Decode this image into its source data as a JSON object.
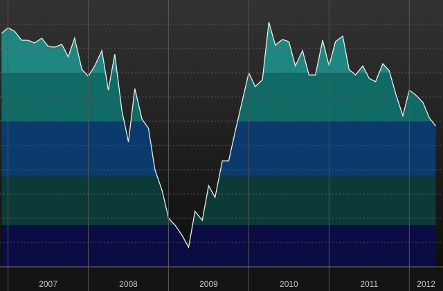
{
  "chart_data": {
    "type": "area",
    "x": [
      2006.92,
      2007.0,
      2007.08,
      2007.17,
      2007.25,
      2007.33,
      2007.42,
      2007.5,
      2007.58,
      2007.67,
      2007.75,
      2007.83,
      2007.92,
      2008.0,
      2008.08,
      2008.17,
      2008.25,
      2008.33,
      2008.42,
      2008.5,
      2008.58,
      2008.67,
      2008.75,
      2008.83,
      2008.92,
      2009.0,
      2009.08,
      2009.17,
      2009.25,
      2009.33,
      2009.42,
      2009.5,
      2009.58,
      2009.67,
      2009.75,
      2009.83,
      2009.92,
      2010.0,
      2010.08,
      2010.17,
      2010.25,
      2010.33,
      2010.42,
      2010.5,
      2010.58,
      2010.67,
      2010.75,
      2010.83,
      2010.92,
      2011.0,
      2011.08,
      2011.17,
      2011.25,
      2011.33,
      2011.42,
      2011.5,
      2011.58,
      2011.67,
      2011.75,
      2011.83,
      2011.92,
      2012.0,
      2012.08,
      2012.17,
      2012.25,
      2012.33
    ],
    "values": [
      87.5,
      89.6,
      88.3,
      84.9,
      84.9,
      83.9,
      85.7,
      82.6,
      82.3,
      83.4,
      78.7,
      85.7,
      74.0,
      71.4,
      75.3,
      81.0,
      66.2,
      79.7,
      58.4,
      46.8,
      66.8,
      55.3,
      51.9,
      36.4,
      28.6,
      18.2,
      15.6,
      11.7,
      7.3,
      20.8,
      17.4,
      30.4,
      26.0,
      39.7,
      39.7,
      50.6,
      62.3,
      72.7,
      67.5,
      70.1,
      91.7,
      83.1,
      85.2,
      84.4,
      75.3,
      81.0,
      71.9,
      71.9,
      84.9,
      75.3,
      84.4,
      86.5,
      74.0,
      71.9,
      75.3,
      70.6,
      69.4,
      76.1,
      73.5,
      64.9,
      56.6,
      66.2,
      64.4,
      61.6,
      55.8,
      52.7
    ],
    "line_color": "#e8f0f0",
    "bands": [
      {
        "from": 72.7,
        "to": 100,
        "color": "#1f8782"
      },
      {
        "from": 54.5,
        "to": 72.7,
        "color": "#106b67"
      },
      {
        "from": 33.8,
        "to": 54.5,
        "color": "#0b3b6c"
      },
      {
        "from": 15.6,
        "to": 33.8,
        "color": "#0c3a36"
      },
      {
        "from": 0,
        "to": 15.6,
        "color": "#0b0c44"
      }
    ],
    "xlim": [
      2006.9,
      2012.42
    ],
    "ylim": [
      0,
      100
    ],
    "xticks": [
      2007,
      2008,
      2009,
      2010,
      2011,
      2012
    ]
  }
}
